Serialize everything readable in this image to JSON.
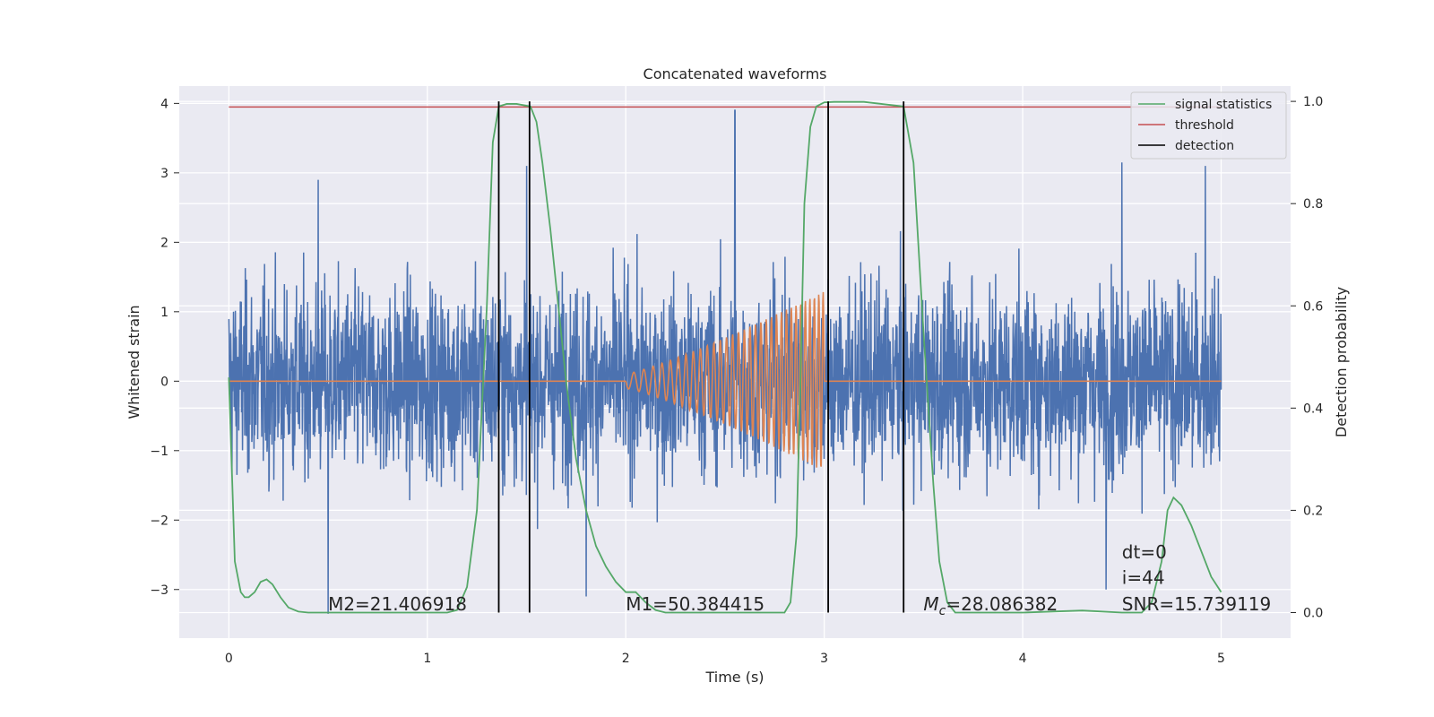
{
  "chart_data": {
    "type": "line",
    "title": "Concatenated waveforms",
    "xlabel": "Time (s)",
    "ylabel": "Whitened strain",
    "y2label": "Detection probability",
    "xlim": [
      -0.25,
      5.35
    ],
    "ylim": [
      -3.7,
      4.25
    ],
    "y2lim": [
      -0.05,
      1.03
    ],
    "xticks": [
      0,
      1,
      2,
      3,
      4,
      5
    ],
    "yticks": [
      -3,
      -2,
      -1,
      0,
      1,
      2,
      3,
      4
    ],
    "y2ticks": [
      0.0,
      0.2,
      0.4,
      0.6,
      0.8,
      1.0
    ],
    "y2tick_labels": [
      "0.0",
      "0.2",
      "0.4",
      "0.6",
      "0.8",
      "1.0"
    ],
    "grid": true,
    "legend_position": "top-right",
    "colors": {
      "background": "#eaeaf2",
      "noise": "#4c72b0",
      "injected": "#dd8452",
      "signal_statistics": "#55a868",
      "threshold": "#c44e52",
      "detection": "#000000"
    },
    "series": [
      {
        "name": "signal statistics",
        "axis": "right",
        "x": [
          0.0,
          0.03,
          0.06,
          0.08,
          0.1,
          0.13,
          0.16,
          0.19,
          0.22,
          0.26,
          0.3,
          0.35,
          0.4,
          0.5,
          0.8,
          1.1,
          1.15,
          1.2,
          1.25,
          1.3,
          1.33,
          1.36,
          1.4,
          1.45,
          1.52,
          1.55,
          1.58,
          1.62,
          1.66,
          1.7,
          1.75,
          1.8,
          1.85,
          1.9,
          1.95,
          2.0,
          2.05,
          2.1,
          2.15,
          2.2,
          2.4,
          2.7,
          2.8,
          2.83,
          2.86,
          2.88,
          2.9,
          2.93,
          2.96,
          3.0,
          3.05,
          3.1,
          3.2,
          3.4,
          3.45,
          3.5,
          3.55,
          3.58,
          3.62,
          3.66,
          3.7,
          3.8,
          4.0,
          4.3,
          4.5,
          4.6,
          4.65,
          4.7,
          4.73,
          4.76,
          4.8,
          4.85,
          4.9,
          4.95,
          5.0
        ],
        "values": [
          0.46,
          0.1,
          0.04,
          0.03,
          0.03,
          0.04,
          0.06,
          0.065,
          0.055,
          0.03,
          0.01,
          0.002,
          0.0,
          0.0,
          0.0,
          0.0,
          0.005,
          0.05,
          0.2,
          0.6,
          0.92,
          0.99,
          0.995,
          0.995,
          0.99,
          0.96,
          0.88,
          0.75,
          0.6,
          0.45,
          0.3,
          0.2,
          0.13,
          0.09,
          0.06,
          0.04,
          0.04,
          0.02,
          0.005,
          0.0,
          0.0,
          0.0,
          0.0,
          0.02,
          0.15,
          0.45,
          0.8,
          0.95,
          0.99,
          0.998,
          0.999,
          0.999,
          0.999,
          0.99,
          0.88,
          0.55,
          0.25,
          0.1,
          0.02,
          0.0,
          0.0,
          0.0,
          0.0,
          0.004,
          0.0,
          0.0,
          0.02,
          0.1,
          0.2,
          0.225,
          0.21,
          0.17,
          0.12,
          0.07,
          0.04
        ]
      },
      {
        "name": "threshold",
        "axis": "right",
        "x": [
          0.0,
          5.0
        ],
        "values": [
          0.989,
          0.989
        ]
      },
      {
        "name": "detection",
        "axis": "right",
        "type": "vlines",
        "x": [
          1.36,
          1.515,
          3.02,
          3.4
        ],
        "y_range": [
          0.0,
          1.0
        ]
      }
    ],
    "noise_trace": {
      "axis": "left",
      "x_range": [
        0.0,
        5.0
      ],
      "amplitude_typical": 1.3,
      "peaks": [
        {
          "x": 2.55,
          "y": 3.9
        },
        {
          "x": 1.5,
          "y": 3.1
        },
        {
          "x": 4.5,
          "y": 3.15
        },
        {
          "x": 4.92,
          "y": 3.1
        },
        {
          "x": 0.45,
          "y": 2.9
        },
        {
          "x": 0.5,
          "y": -3.35
        },
        {
          "x": 1.8,
          "y": -3.1
        },
        {
          "x": 4.42,
          "y": -3.0
        }
      ]
    },
    "injected_chirp": {
      "axis": "left",
      "start": 2.0,
      "end": 3.0,
      "peak_amplitude": 1.3
    },
    "annotations": [
      {
        "x": 0.5,
        "y": -3.3,
        "text_prefix": "",
        "text": "M2=21.406918"
      },
      {
        "x": 2.0,
        "y": -3.3,
        "text_prefix": "",
        "text": "M1=50.384415"
      },
      {
        "x": 3.5,
        "y": -3.3,
        "text_prefix": "M",
        "text_sub": "c",
        "text": "=28.086382"
      },
      {
        "x": 4.5,
        "y": -2.55,
        "text_prefix": "",
        "text": "dt=0"
      },
      {
        "x": 4.5,
        "y": -2.92,
        "text_prefix": "",
        "text": "i=44"
      },
      {
        "x": 4.5,
        "y": -3.3,
        "text_prefix": "",
        "text": "SNR=15.739119"
      }
    ]
  }
}
